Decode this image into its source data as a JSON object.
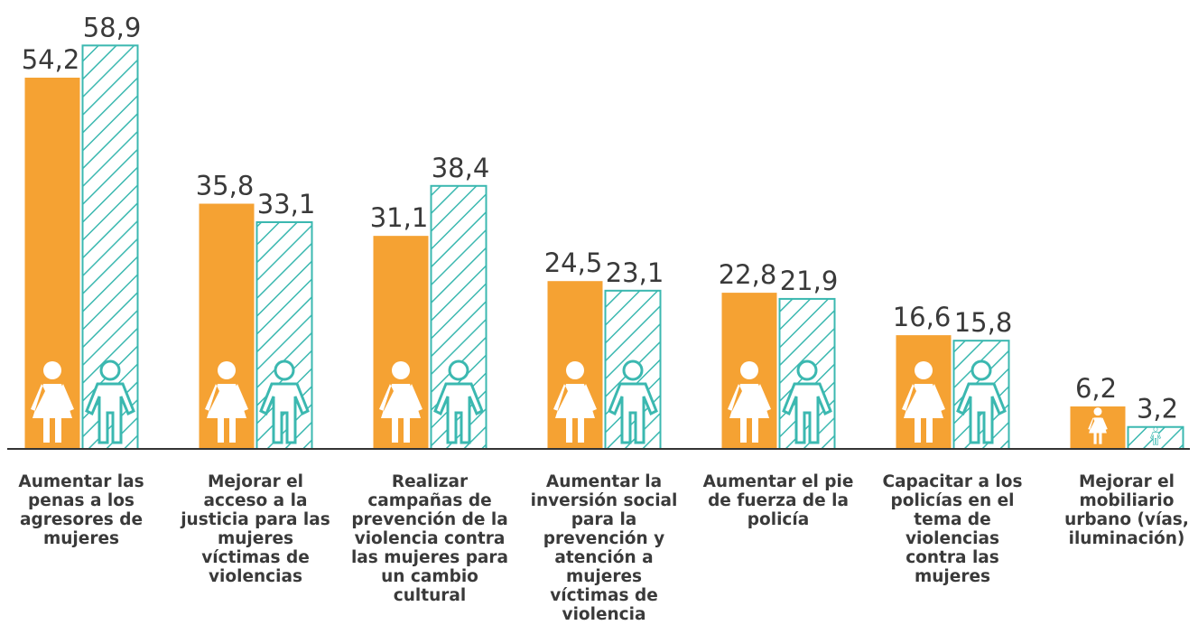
{
  "chart_data": {
    "type": "bar",
    "categories": [
      "Aumentar las penas a los agresores de mujeres",
      "Mejorar el acceso a la justicia para las mujeres víctimas de violencias",
      "Realizar campañas de prevención de la violencia contra las mujeres para un cambio cultural",
      "Aumentar la inversión social para la prevención y atención a mujeres víctimas de violencia",
      "Aumentar el pie de fuerza de la policía",
      "Capacitar a los policías en el tema de violencias contra las mujeres",
      "Mejorar el mobiliario urbano (vías, iluminación)"
    ],
    "series": [
      {
        "color": "#f5a233",
        "pattern": "solid",
        "values": [
          54.2,
          35.8,
          31.1,
          24.5,
          22.8,
          16.6,
          6.2
        ],
        "value_labels": [
          "54,2",
          "35,8",
          "31,1",
          "24,5",
          "22,8",
          "16,6",
          "6,2"
        ]
      },
      {
        "color": "#3bb8b0",
        "pattern": "hatch",
        "values": [
          58.9,
          33.1,
          38.4,
          23.1,
          21.9,
          15.8,
          3.2
        ],
        "value_labels": [
          "58,9",
          "33,1",
          "38,4",
          "23,1",
          "21,9",
          "15,8",
          "3,2"
        ]
      }
    ],
    "ylim": [
      0,
      60
    ]
  }
}
